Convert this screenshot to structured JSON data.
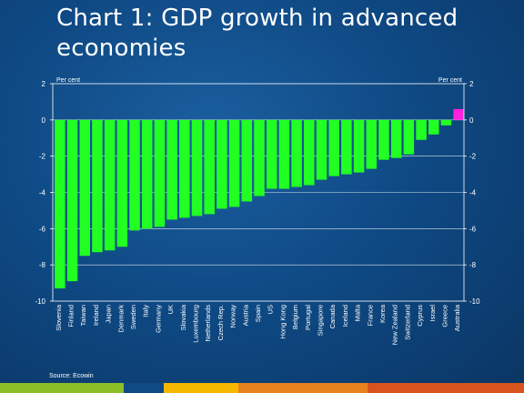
{
  "title": "Chart 1: GDP growth in advanced economies",
  "source": "Source: Ecowin",
  "colors": {
    "bar": "#22ff22",
    "highlight": "#ff22dd",
    "footer": [
      "#8cbf26",
      "#0f4a85",
      "#f5b800",
      "#e8821e",
      "#d9541c"
    ]
  },
  "chart_data": {
    "type": "bar",
    "unit_left": "Per cent",
    "unit_right": "Per cent",
    "ylim": [
      -10,
      2
    ],
    "yticks": [
      2,
      0,
      -2,
      -4,
      -6,
      -8,
      -10
    ],
    "grid": true,
    "categories": [
      "Slovenia",
      "Finland",
      "Taiwan",
      "Ireland",
      "Japan",
      "Denmark",
      "Sweden",
      "Italy",
      "Germany",
      "UK",
      "Slovakia",
      "Luxembourg",
      "Netherlands",
      "Czech Rep.",
      "Norway",
      "Austria",
      "Spain",
      "US",
      "Hong Kong",
      "Belgium",
      "Portugal",
      "Singapore",
      "Canada",
      "Iceland",
      "Malta",
      "France",
      "Korea",
      "New Zealand",
      "Switzerland",
      "Cyprus",
      "Israel",
      "Greece",
      "Australia"
    ],
    "values": [
      -9.3,
      -8.9,
      -7.5,
      -7.3,
      -7.2,
      -7.0,
      -6.1,
      -6.0,
      -5.9,
      -5.5,
      -5.4,
      -5.3,
      -5.2,
      -4.9,
      -4.8,
      -4.5,
      -4.2,
      -3.8,
      -3.8,
      -3.7,
      -3.6,
      -3.3,
      -3.1,
      -3.0,
      -2.9,
      -2.7,
      -2.2,
      -2.1,
      -1.9,
      -1.1,
      -0.8,
      -0.3,
      0.6
    ],
    "highlight_category": "Australia"
  }
}
